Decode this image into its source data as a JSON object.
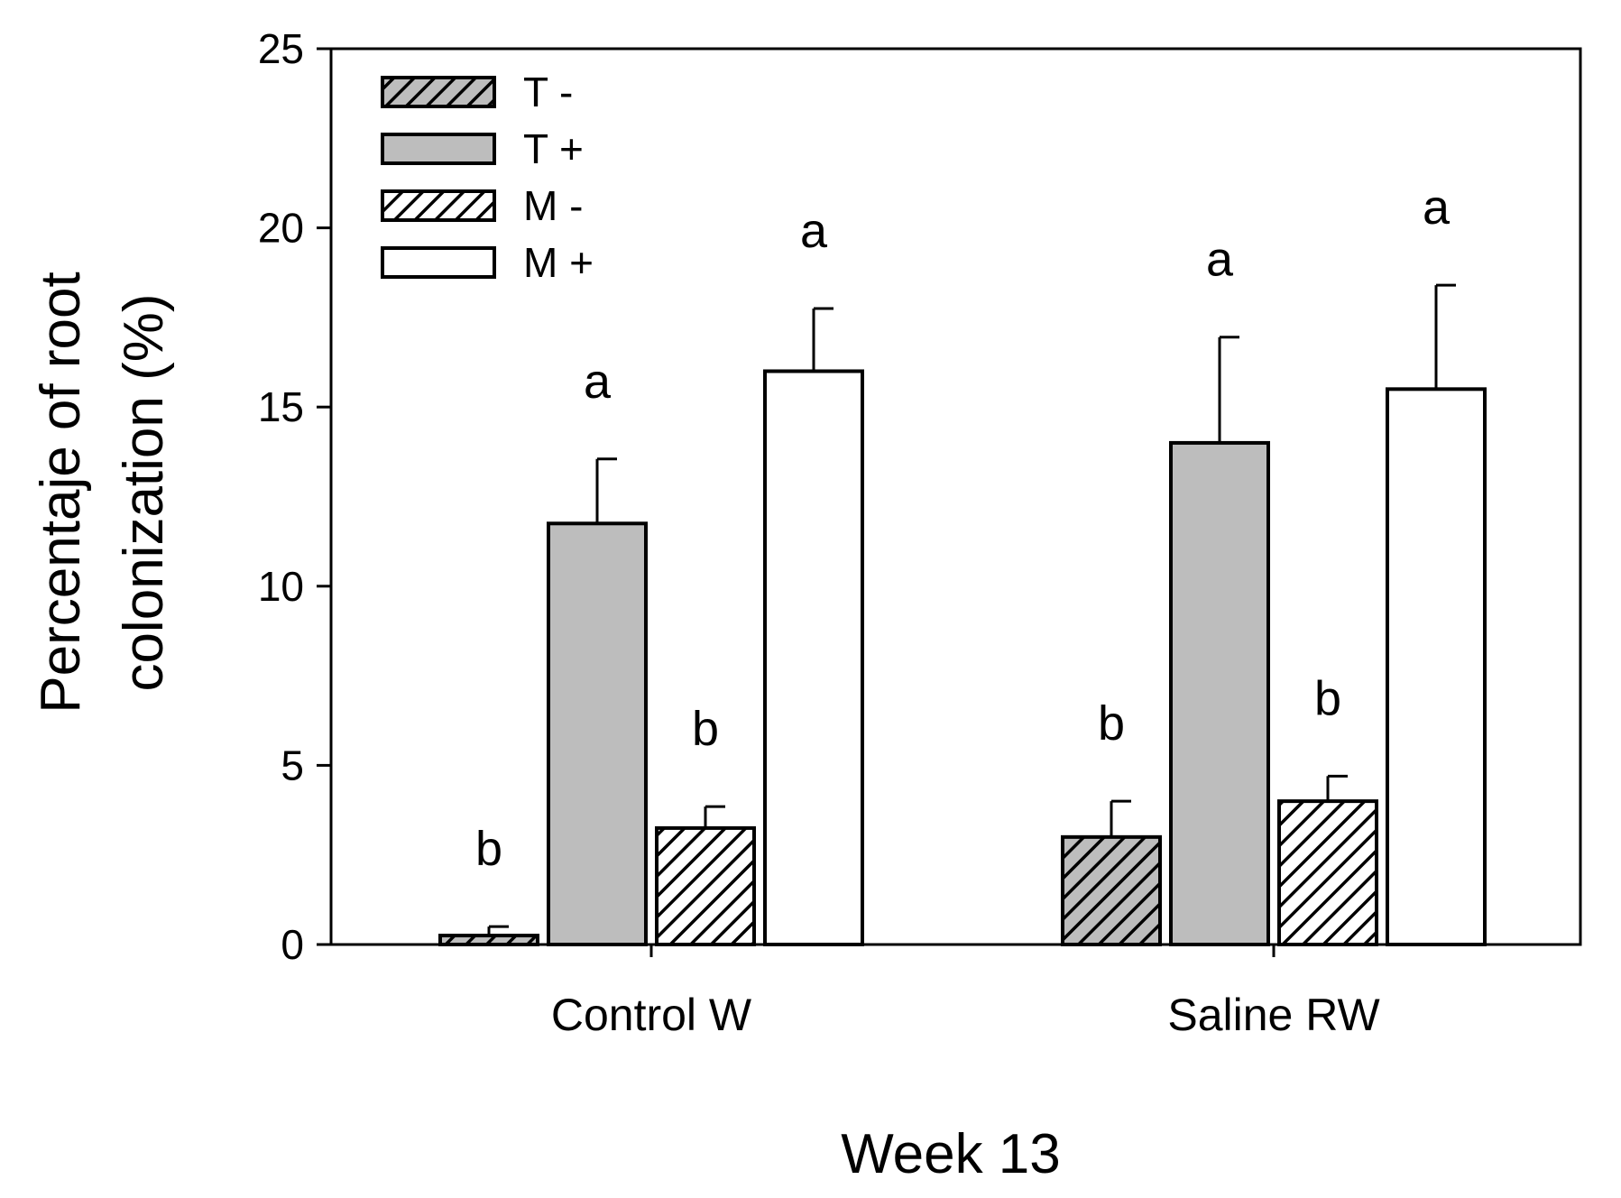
{
  "chart_data": {
    "type": "bar",
    "title": "",
    "xlabel": "Week 13",
    "ylabel_lines": [
      "Percentaje of root",
      "colonization (%)"
    ],
    "ylim": [
      0,
      25
    ],
    "yticks": [
      0,
      5,
      10,
      15,
      20,
      25
    ],
    "ytick_labels": [
      "0",
      "5",
      "10",
      "15",
      "20",
      "25"
    ],
    "categories": [
      "Control W",
      "Saline RW"
    ],
    "legend_position": "top-left",
    "series": [
      {
        "name": "T -",
        "fill": "#bdbdbd",
        "pattern": "hatch",
        "values": [
          0.25,
          3.0
        ],
        "errors": [
          0.25,
          1.0
        ],
        "letters": [
          "b",
          "b"
        ]
      },
      {
        "name": "T +",
        "fill": "#bdbdbd",
        "pattern": "solid",
        "values": [
          11.75,
          14.0
        ],
        "errors": [
          1.8,
          2.95
        ],
        "letters": [
          "a",
          "a"
        ]
      },
      {
        "name": "M -",
        "fill": "#ffffff",
        "pattern": "hatch",
        "values": [
          3.25,
          4.0
        ],
        "errors": [
          0.6,
          0.7
        ],
        "letters": [
          "b",
          "b"
        ]
      },
      {
        "name": "M +",
        "fill": "#ffffff",
        "pattern": "solid",
        "values": [
          16.0,
          15.5
        ],
        "errors": [
          1.75,
          2.9
        ],
        "letters": [
          "a",
          "a"
        ]
      }
    ]
  }
}
